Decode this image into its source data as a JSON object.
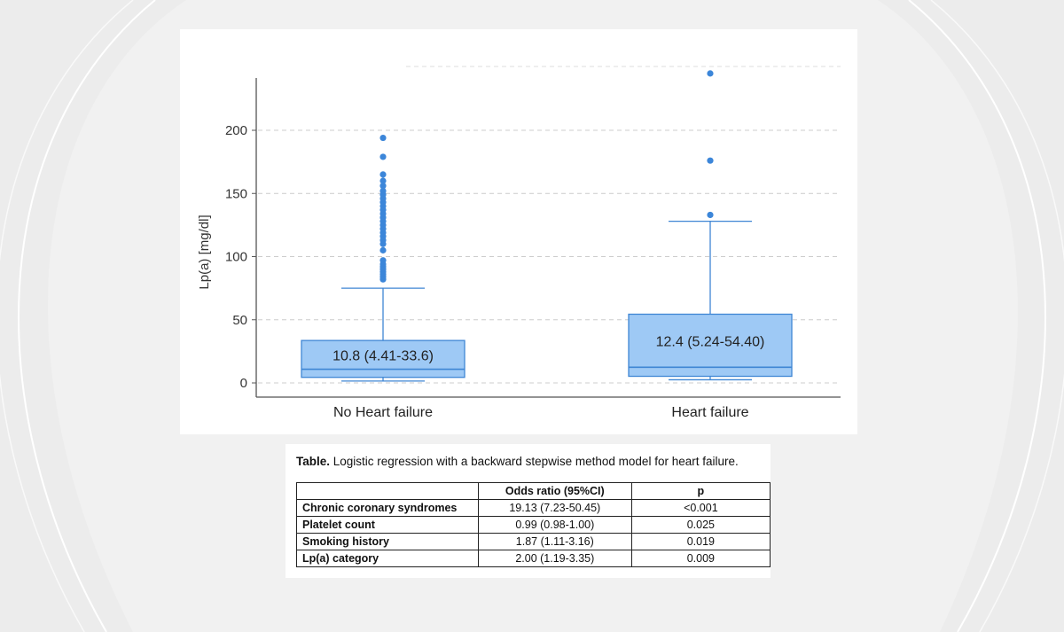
{
  "chart_data": {
    "type": "box",
    "ylabel": "Lp(a) [mg/dl]",
    "xlabel": "",
    "ylim": [
      -10,
      245
    ],
    "yticks": [
      0,
      50,
      100,
      150,
      200
    ],
    "grid": true,
    "categories": [
      "No Heart failure",
      "Heart failure"
    ],
    "boxes": [
      {
        "name": "No Heart failure",
        "min": 1.5,
        "q1": 4.41,
        "median": 10.8,
        "q3": 33.6,
        "max": 75,
        "label": "10.8 (4.41-33.6)",
        "outliers": [
          82,
          84,
          86,
          88,
          90,
          92,
          94,
          97,
          105,
          110,
          113,
          116,
          119,
          122,
          125,
          128,
          131,
          134,
          137,
          140,
          143,
          146,
          149,
          152,
          156,
          160,
          165,
          179,
          194
        ]
      },
      {
        "name": "Heart failure",
        "min": 2.5,
        "q1": 5.24,
        "median": 12.4,
        "q3": 54.4,
        "max": 128,
        "label": "12.4 (5.24-54.40)",
        "outliers": [
          133,
          176,
          245
        ]
      }
    ],
    "colors": {
      "box_fill": "#9ec9f5",
      "box_stroke": "#3f86d4",
      "outlier": "#3c86d9",
      "axis": "#555555",
      "grid": "#cccccc"
    }
  },
  "table": {
    "caption_bold": "Table.",
    "caption_text": " Logistic regression with a backward stepwise method model for heart failure.",
    "headers": [
      "",
      "Odds ratio (95%CI)",
      "p"
    ],
    "rows": [
      [
        "Chronic coronary syndromes",
        "19.13 (7.23-50.45)",
        "<0.001"
      ],
      [
        "Platelet count",
        "0.99 (0.98-1.00)",
        "0.025"
      ],
      [
        "Smoking history",
        "1.87 (1.11-3.16)",
        "0.019"
      ],
      [
        "Lp(a) category",
        "2.00 (1.19-3.35)",
        "0.009"
      ]
    ]
  }
}
